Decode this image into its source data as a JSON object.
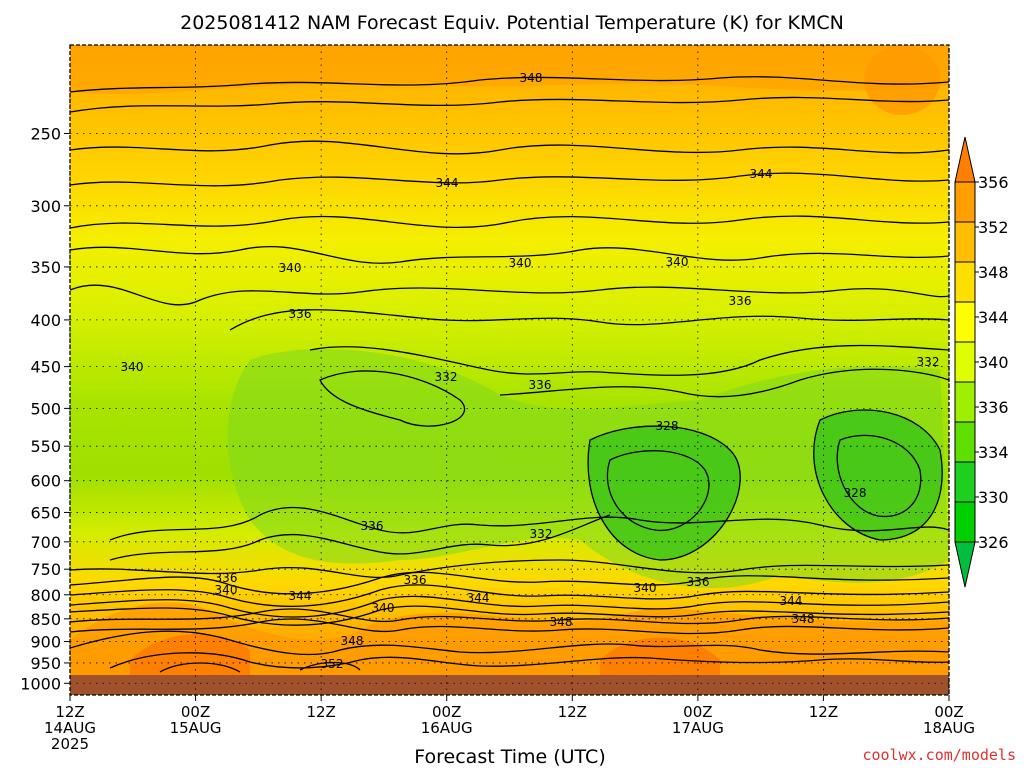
{
  "chart_data": {
    "type": "heatmap",
    "title": "2025081412 NAM Forecast Equiv. Potential Temperature (K) for KMCN",
    "xlabel": "Forecast Time (UTC)",
    "credit": "coolwx.com/models",
    "ylim_hpa": [
      1030,
      200
    ],
    "y_scale": "log-pressure",
    "grid": "dotted",
    "y_ticks": [
      "250",
      "300",
      "350",
      "400",
      "450",
      "500",
      "550",
      "600",
      "650",
      "700",
      "750",
      "800",
      "850",
      "900",
      "950",
      "1000"
    ],
    "y_tick_values": [
      250,
      300,
      350,
      400,
      450,
      500,
      550,
      600,
      650,
      700,
      750,
      800,
      850,
      900,
      950,
      1000
    ],
    "x_ticks": [
      {
        "l1": "12Z",
        "l2": "14AUG",
        "l3": "2025"
      },
      {
        "l1": "00Z",
        "l2": "15AUG",
        "l3": ""
      },
      {
        "l1": "12Z",
        "l2": "",
        "l3": ""
      },
      {
        "l1": "00Z",
        "l2": "16AUG",
        "l3": ""
      },
      {
        "l1": "12Z",
        "l2": "",
        "l3": ""
      },
      {
        "l1": "00Z",
        "l2": "17AUG",
        "l3": ""
      },
      {
        "l1": "12Z",
        "l2": "",
        "l3": ""
      },
      {
        "l1": "00Z",
        "l2": "18AUG",
        "l3": ""
      }
    ],
    "x_hours": [
      0,
      12,
      24,
      36,
      48,
      60,
      72,
      84
    ],
    "x_hours_max": 84,
    "colorbar": {
      "labels": [
        "356",
        "352",
        "348",
        "344",
        "340",
        "336",
        "334",
        "330",
        "326"
      ],
      "colors": [
        "#ff7f00",
        "#ff9f00",
        "#ffbf00",
        "#ffdf00",
        "#ffff00",
        "#dfff00",
        "#9fef00",
        "#5fdf00",
        "#1fcf1f",
        "#00cf00",
        "#00bf3f"
      ]
    },
    "ground_color": "#a0522d",
    "contour_levels": [
      "348",
      "344",
      "344",
      "340",
      "340",
      "340",
      "340",
      "336",
      "336",
      "336",
      "332",
      "336",
      "332",
      "328",
      "328",
      "336",
      "332",
      "336",
      "340",
      "336",
      "340",
      "340",
      "344",
      "344",
      "344",
      "348",
      "348",
      "348",
      "352"
    ],
    "series": [
      {
        "name": "Equivalent potential temperature (K)",
        "columns_hours": [
          0,
          12,
          24,
          36,
          48,
          60,
          72,
          84
        ],
        "rows_hpa": [
          225,
          250,
          300,
          350,
          400,
          450,
          500,
          550,
          600,
          650,
          700,
          750,
          800,
          850,
          900,
          950,
          1000
        ],
        "values": [
          [
            349,
            347,
            348,
            347,
            348,
            348,
            348,
            350
          ],
          [
            347,
            346,
            347,
            346,
            346,
            346,
            346,
            347
          ],
          [
            344,
            343,
            344,
            343,
            344,
            344,
            344,
            344
          ],
          [
            341,
            341,
            341,
            340,
            340,
            340,
            341,
            341
          ],
          [
            340,
            339,
            338,
            337,
            338,
            337,
            337,
            338
          ],
          [
            340,
            339,
            335,
            334,
            337,
            336,
            334,
            333
          ],
          [
            340,
            338,
            334,
            333,
            336,
            334,
            332,
            331
          ],
          [
            339,
            338,
            336,
            335,
            334,
            331,
            330,
            330
          ],
          [
            339,
            338,
            337,
            336,
            333,
            329,
            328,
            328
          ],
          [
            338,
            337,
            337,
            336,
            333,
            329,
            330,
            329
          ],
          [
            337,
            335,
            336,
            333,
            333,
            331,
            332,
            331
          ],
          [
            336,
            334,
            335,
            333,
            334,
            333,
            334,
            334
          ],
          [
            338,
            336,
            339,
            337,
            338,
            337,
            340,
            339
          ],
          [
            343,
            343,
            343,
            344,
            343,
            344,
            344,
            344
          ],
          [
            347,
            350,
            347,
            348,
            347,
            350,
            348,
            349
          ],
          [
            349,
            352,
            349,
            349,
            348,
            350,
            349,
            349
          ],
          [
            350,
            352,
            350,
            350,
            349,
            351,
            350,
            350
          ]
        ]
      }
    ]
  }
}
